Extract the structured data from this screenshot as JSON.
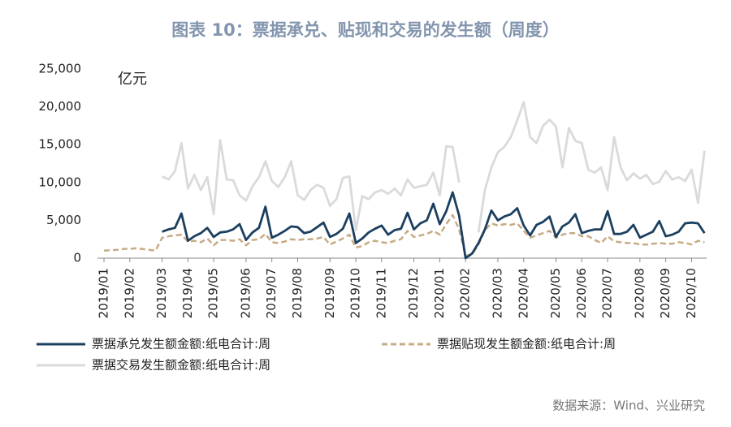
{
  "chart_data": {
    "type": "line",
    "title": "图表 10：票据承兑、贴现和交易的发生额（周度）",
    "y_unit": "亿元",
    "source": "数据来源：Wind、兴业研究",
    "categories": [
      "2019/01",
      null,
      null,
      null,
      "2019/02",
      null,
      null,
      null,
      null,
      "2019/03",
      null,
      null,
      null,
      "2019/04",
      null,
      null,
      null,
      "2019/05",
      null,
      null,
      null,
      null,
      "2019/06",
      null,
      null,
      null,
      "2019/07",
      null,
      null,
      null,
      "2019/08",
      null,
      null,
      null,
      null,
      "2019/09",
      null,
      null,
      null,
      "2019/10",
      null,
      null,
      null,
      "2019/11",
      null,
      null,
      null,
      null,
      "2019/12",
      null,
      null,
      null,
      "2020/01",
      null,
      null,
      null,
      "2020/02",
      null,
      null,
      null,
      null,
      "2020/03",
      null,
      null,
      null,
      "2020/04",
      null,
      null,
      null,
      null,
      "2020/05",
      null,
      null,
      null,
      "2020/06",
      null,
      null,
      null,
      "2020/07",
      null,
      null,
      null,
      null,
      "2020/08",
      null,
      null,
      null,
      "2020/09",
      null,
      null,
      null,
      "2020/10",
      null,
      null
    ],
    "series": [
      {
        "name": "票据承兑发生额金额:纸电合计:周",
        "color": "#1b3f5f",
        "dash": false,
        "values": [
          null,
          null,
          null,
          null,
          null,
          null,
          null,
          null,
          null,
          3500,
          3800,
          4000,
          5900,
          2300,
          2900,
          3300,
          4000,
          2800,
          3400,
          3500,
          3800,
          4500,
          2400,
          3400,
          4000,
          6800,
          2700,
          3100,
          3600,
          4200,
          4100,
          3300,
          3500,
          4100,
          4700,
          2800,
          3200,
          3900,
          5900,
          2000,
          2600,
          3400,
          3900,
          4300,
          3100,
          3700,
          3900,
          6000,
          3800,
          4600,
          5000,
          7200,
          4500,
          6200,
          8700,
          5600,
          0,
          600,
          2000,
          3800,
          6300,
          5000,
          5500,
          5800,
          6600,
          4300,
          3000,
          4400,
          4800,
          5500,
          2800,
          4200,
          4700,
          5800,
          3300,
          3600,
          3800,
          3800,
          6200,
          3200,
          3200,
          3500,
          4400,
          2700,
          3100,
          3500,
          4900,
          2900,
          3100,
          3500,
          4600,
          4700,
          4600,
          3300
        ]
      },
      {
        "name": "票据贴现发生额金额:纸电合计:周",
        "color": "#c7ab84",
        "dash": true,
        "values": [
          1000,
          1050,
          1100,
          1200,
          1250,
          1300,
          1200,
          1100,
          1000,
          2700,
          2900,
          3000,
          3100,
          2200,
          2300,
          2100,
          2600,
          1700,
          2400,
          2400,
          2300,
          2500,
          1700,
          2400,
          2500,
          3200,
          2100,
          2000,
          2200,
          2500,
          2400,
          2500,
          2500,
          2600,
          2800,
          1800,
          2200,
          2600,
          3100,
          1400,
          1600,
          2100,
          2300,
          2100,
          2000,
          2300,
          2500,
          3600,
          2800,
          3000,
          3200,
          3600,
          3100,
          4500,
          5700,
          3800,
          300,
          500,
          1800,
          3700,
          4600,
          4300,
          4500,
          4400,
          4600,
          3600,
          2700,
          3000,
          3300,
          3600,
          2700,
          3100,
          3300,
          3300,
          2900,
          2900,
          2400,
          2000,
          2900,
          2200,
          2100,
          2000,
          2000,
          1800,
          1800,
          1900,
          2000,
          1900,
          1900,
          2100,
          2000,
          1800,
          2300,
          2100
        ]
      },
      {
        "name": "票据交易发生额金额:纸电合计:周",
        "color": "#dadada",
        "dash": false,
        "values": [
          null,
          null,
          null,
          null,
          null,
          null,
          null,
          null,
          null,
          10800,
          10400,
          11500,
          15200,
          9200,
          11000,
          9000,
          10700,
          5800,
          15600,
          10400,
          10300,
          8300,
          7600,
          9500,
          10700,
          12800,
          10200,
          9400,
          10700,
          12800,
          8300,
          7700,
          9000,
          9700,
          9300,
          6900,
          7800,
          10600,
          10800,
          3700,
          8200,
          7800,
          8700,
          9000,
          8500,
          9200,
          8300,
          10400,
          9300,
          9500,
          9700,
          11300,
          8300,
          14800,
          14700,
          10000,
          null,
          null,
          3400,
          9000,
          12000,
          14000,
          14700,
          16000,
          18200,
          20600,
          16000,
          15200,
          17500,
          18300,
          17400,
          12000,
          17200,
          15500,
          15200,
          11700,
          11300,
          12000,
          9000,
          16000,
          12000,
          10300,
          11200,
          10500,
          11000,
          9800,
          10100,
          11500,
          10400,
          10700,
          10200,
          11700,
          7300,
          14200
        ]
      }
    ],
    "ylim": [
      0,
      25000
    ],
    "yticks": [
      0,
      {
        "value": 5000,
        "label": "5,000"
      },
      {
        "value": 10000,
        "label": "10,000"
      },
      {
        "value": 15000,
        "label": "15,000"
      },
      {
        "value": 20000,
        "label": "20,000"
      },
      {
        "value": 25000,
        "label": "25,000"
      }
    ],
    "grid": false
  }
}
